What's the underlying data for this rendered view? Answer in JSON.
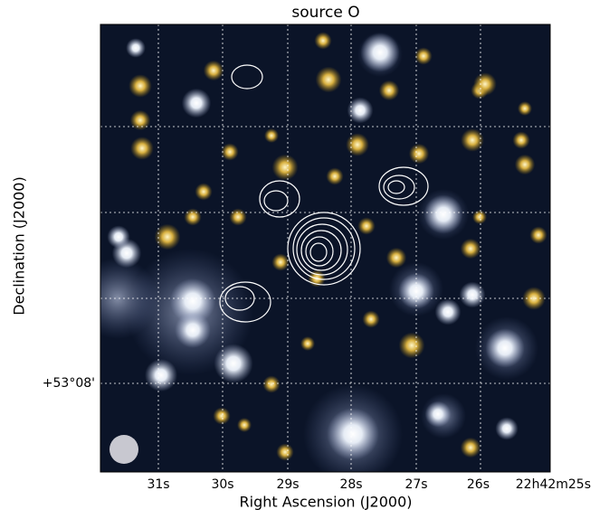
{
  "title": "source O",
  "x_axis": {
    "label": "Right Ascension (J2000)",
    "tick_labels": [
      "31s",
      "30s",
      "29s",
      "28s",
      "27s",
      "26s",
      "22h42m25s"
    ]
  },
  "y_axis": {
    "label": "Declination (J2000)",
    "tick_labels": [
      "+53°08'"
    ]
  }
}
